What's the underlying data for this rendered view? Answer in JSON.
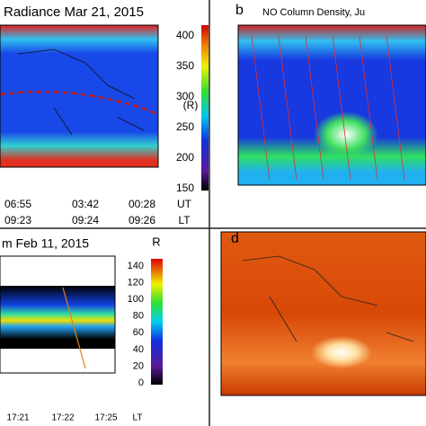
{
  "panels": [
    {
      "title": "Radiance Mar 21, 2015",
      "colorbar": {
        "label": "(R)",
        "ticks": [
          "400",
          "350",
          "300",
          "250",
          "200",
          "150"
        ]
      },
      "time_rows": [
        [
          "06:55",
          "03:42",
          "00:28",
          "UT"
        ],
        [
          "09:23",
          "09:24",
          "09:26",
          "LT"
        ]
      ]
    },
    {
      "label": "b",
      "title": "NO Column Density, Ju"
    },
    {
      "title": "m  Feb 11, 2015",
      "colorbar": {
        "label": "R",
        "ticks": [
          "140",
          "120",
          "100",
          "80",
          "60",
          "40",
          "20",
          "0"
        ]
      },
      "time_rows": [
        [
          "17:21",
          "17:22",
          "17:25",
          "LT"
        ]
      ]
    },
    {
      "label": "d"
    }
  ]
}
